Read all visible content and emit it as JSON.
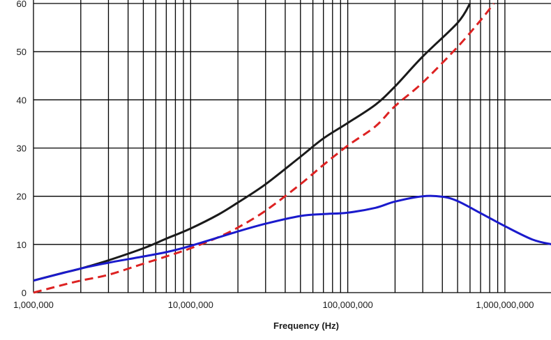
{
  "chart_data": {
    "type": "line",
    "title": "",
    "xlabel": "Frequency (Hz)",
    "ylabel": "",
    "xscale": "log",
    "xlim": [
      1000000,
      2000000000
    ],
    "ylim": [
      0,
      60
    ],
    "grid": true,
    "legend": "none",
    "x_ticks": [
      {
        "value": 1000000,
        "label": "1,000,000"
      },
      {
        "value": 10000000,
        "label": "10,000,000"
      },
      {
        "value": 100000000,
        "label": "100,000,000"
      },
      {
        "value": 1000000000,
        "label": "1,000,000,000"
      }
    ],
    "y_ticks": [
      0,
      10,
      20,
      30,
      40,
      50,
      60
    ],
    "series": [
      {
        "color": "#1a1a1a",
        "style": "solid",
        "points": [
          [
            1000000,
            2.5
          ],
          [
            1500000,
            4
          ],
          [
            2000000,
            5
          ],
          [
            3000000,
            6.7
          ],
          [
            5000000,
            9.2
          ],
          [
            7000000,
            11.2
          ],
          [
            10000000,
            13.3
          ],
          [
            15000000,
            16.2
          ],
          [
            20000000,
            18.7
          ],
          [
            30000000,
            22.5
          ],
          [
            50000000,
            28.2
          ],
          [
            70000000,
            32
          ],
          [
            100000000,
            35.2
          ],
          [
            150000000,
            39
          ],
          [
            200000000,
            42.8
          ],
          [
            300000000,
            49
          ],
          [
            500000000,
            56
          ],
          [
            600000000,
            60
          ]
        ]
      },
      {
        "color": "#dd2222",
        "style": "dashed",
        "points": [
          [
            1000000,
            0
          ],
          [
            1500000,
            1.5
          ],
          [
            2000000,
            2.5
          ],
          [
            3000000,
            3.7
          ],
          [
            5000000,
            6
          ],
          [
            7000000,
            7.5
          ],
          [
            10000000,
            9.2
          ],
          [
            15000000,
            11.5
          ],
          [
            20000000,
            13.5
          ],
          [
            30000000,
            17
          ],
          [
            50000000,
            22.5
          ],
          [
            70000000,
            26.5
          ],
          [
            100000000,
            30.5
          ],
          [
            150000000,
            34.5
          ],
          [
            200000000,
            38.7
          ],
          [
            300000000,
            43.6
          ],
          [
            500000000,
            51
          ],
          [
            700000000,
            56.5
          ],
          [
            850000000,
            60
          ]
        ]
      },
      {
        "color": "#1a1acc",
        "style": "solid",
        "points": [
          [
            1000000,
            2.5
          ],
          [
            2000000,
            5
          ],
          [
            3000000,
            6.2
          ],
          [
            5000000,
            7.5
          ],
          [
            7000000,
            8.4
          ],
          [
            10000000,
            9.7
          ],
          [
            20000000,
            12.7
          ],
          [
            30000000,
            14.3
          ],
          [
            50000000,
            15.9
          ],
          [
            70000000,
            16.3
          ],
          [
            100000000,
            16.6
          ],
          [
            150000000,
            17.6
          ],
          [
            200000000,
            18.9
          ],
          [
            300000000,
            20
          ],
          [
            400000000,
            19.9
          ],
          [
            500000000,
            19
          ],
          [
            700000000,
            16.5
          ],
          [
            1000000000,
            13.8
          ],
          [
            1500000000,
            11
          ],
          [
            2000000000,
            10
          ]
        ]
      }
    ]
  }
}
